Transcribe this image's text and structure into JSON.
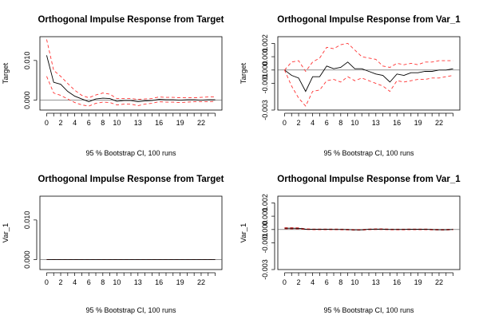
{
  "chart_data": [
    {
      "type": "line",
      "title": "Orthogonal Impulse Response from Target",
      "ylabel": "Target",
      "xlabel": "95 % Bootstrap CI,  100 runs",
      "ylim": [
        -0.0025,
        0.016
      ],
      "yticks": [
        0.0,
        0.01
      ],
      "ytick_labels": [
        "0.000",
        "0.010"
      ],
      "xticks": [
        0,
        2,
        4,
        6,
        8,
        10,
        13,
        16,
        19,
        22
      ],
      "zero_line": true,
      "x": [
        0,
        1,
        2,
        3,
        4,
        5,
        6,
        7,
        8,
        9,
        10,
        11,
        12,
        13,
        14,
        15,
        16,
        17,
        18,
        19,
        20,
        21,
        22,
        23,
        24
      ],
      "series": [
        {
          "role": "irf",
          "color": "#000000",
          "dash": false,
          "values": [
            0.0113,
            0.0045,
            0.004,
            0.0022,
            0.001,
            0.0003,
            -0.0004,
            0.0003,
            0.0005,
            0.0004,
            -0.0003,
            -0.0001,
            -0.0001,
            -0.0004,
            -0.0002,
            -0.0001,
            0.0002,
            0.0001,
            0.0001,
            0.0,
            0.0001,
            0.0001,
            0.0,
            0.0001,
            0.0001
          ]
        },
        {
          "role": "upper",
          "color": "#ff3333",
          "dash": true,
          "values": [
            0.0153,
            0.0075,
            0.006,
            0.0042,
            0.0025,
            0.0012,
            0.0006,
            0.0013,
            0.0018,
            0.0015,
            0.0004,
            0.0004,
            0.0004,
            0.0002,
            0.0003,
            0.0004,
            0.0008,
            0.0007,
            0.0007,
            0.0006,
            0.0006,
            0.0006,
            0.0007,
            0.0008,
            0.0008
          ]
        },
        {
          "role": "lower",
          "color": "#ff3333",
          "dash": true,
          "values": [
            0.006,
            0.0018,
            0.0012,
            0.0003,
            -0.0006,
            -0.0012,
            -0.0015,
            -0.0008,
            -0.0005,
            -0.0006,
            -0.0012,
            -0.001,
            -0.001,
            -0.0014,
            -0.001,
            -0.0008,
            -0.0004,
            -0.0005,
            -0.0005,
            -0.0006,
            -0.0005,
            -0.0004,
            -0.0004,
            -0.0004,
            -0.0003
          ]
        }
      ]
    },
    {
      "type": "line",
      "title": "Orthogonal Impulse Response from Var_1",
      "ylabel": "Target",
      "xlabel": "95 % Bootstrap CI,  100 runs",
      "ylim": [
        -0.003,
        0.0025
      ],
      "yticks": [
        -0.003,
        -0.001,
        0.0,
        0.001,
        0.002
      ],
      "ytick_labels": [
        "-0.003",
        "-0.001",
        "0.000",
        "0.001",
        "0.002"
      ],
      "xticks": [
        0,
        2,
        4,
        6,
        8,
        10,
        13,
        16,
        19,
        22
      ],
      "zero_line": true,
      "x": [
        0,
        1,
        2,
        3,
        4,
        5,
        6,
        7,
        8,
        9,
        10,
        11,
        12,
        13,
        14,
        15,
        16,
        17,
        18,
        19,
        20,
        21,
        22,
        23,
        24
      ],
      "series": [
        {
          "role": "irf",
          "color": "#000000",
          "dash": false,
          "values": [
            0.0,
            -0.0004,
            -0.0006,
            -0.0016,
            -0.0005,
            -0.0005,
            0.0003,
            0.0001,
            0.0002,
            0.0006,
            0.0001,
            0.0001,
            -0.0001,
            -0.0003,
            -0.0004,
            -0.0009,
            -0.0003,
            -0.0004,
            -0.0002,
            -0.0002,
            -0.0001,
            -0.0001,
            0.0,
            0.0,
            0.0001
          ]
        },
        {
          "role": "upper",
          "color": "#ff3333",
          "dash": true,
          "values": [
            0.0,
            0.0006,
            0.0007,
            -0.0001,
            0.0006,
            0.0009,
            0.0017,
            0.0016,
            0.0019,
            0.002,
            0.0015,
            0.001,
            0.0009,
            0.0008,
            0.0003,
            0.0002,
            0.0005,
            0.0004,
            0.0005,
            0.0004,
            0.0006,
            0.0006,
            0.0007,
            0.0007,
            0.0007
          ]
        },
        {
          "role": "lower",
          "color": "#ff3333",
          "dash": true,
          "values": [
            0.0,
            -0.0012,
            -0.0021,
            -0.0027,
            -0.0016,
            -0.0015,
            -0.0008,
            -0.0007,
            -0.0009,
            -0.0005,
            -0.0008,
            -0.0006,
            -0.0008,
            -0.001,
            -0.0012,
            -0.0016,
            -0.0008,
            -0.0009,
            -0.0008,
            -0.0007,
            -0.0007,
            -0.0006,
            -0.0006,
            -0.0005,
            -0.0004
          ]
        }
      ]
    },
    {
      "type": "line",
      "title": "Orthogonal Impulse Response from Target",
      "ylabel": "Var_1",
      "xlabel": "95 % Bootstrap CI,  100 runs",
      "ylim": [
        -0.0025,
        0.016
      ],
      "yticks": [
        0.0,
        0.01
      ],
      "ytick_labels": [
        "0.000",
        "0.010"
      ],
      "xticks": [
        0,
        2,
        4,
        6,
        8,
        10,
        13,
        16,
        19,
        22
      ],
      "zero_line": true,
      "x": [
        0,
        1,
        2,
        3,
        4,
        5,
        6,
        7,
        8,
        9,
        10,
        11,
        12,
        13,
        14,
        15,
        16,
        17,
        18,
        19,
        20,
        21,
        22,
        23,
        24
      ],
      "series": [
        {
          "role": "upper",
          "color": "#ff3333",
          "dash": true,
          "values": [
            0,
            0,
            0,
            0,
            0,
            0,
            0,
            0,
            0,
            0,
            0,
            0,
            0,
            0,
            0,
            0,
            0,
            0,
            0,
            0,
            0,
            0,
            0,
            0,
            0
          ]
        },
        {
          "role": "lower",
          "color": "#ff3333",
          "dash": true,
          "values": [
            0,
            0,
            0,
            0,
            0,
            0,
            0,
            0,
            0,
            0,
            0,
            0,
            0,
            0,
            0,
            0,
            0,
            0,
            0,
            0,
            0,
            0,
            0,
            0,
            0
          ]
        },
        {
          "role": "irf",
          "color": "#000000",
          "dash": false,
          "values": [
            0,
            0,
            0,
            0,
            0,
            0,
            0,
            0,
            0,
            0,
            0,
            0,
            0,
            0,
            0,
            0,
            0,
            0,
            0,
            0,
            0,
            0,
            0,
            0,
            0
          ]
        }
      ]
    },
    {
      "type": "line",
      "title": "Orthogonal Impulse Response from Var_1",
      "ylabel": "Var_1",
      "xlabel": "95 % Bootstrap CI,  100 runs",
      "ylim": [
        -0.003,
        0.0025
      ],
      "yticks": [
        -0.003,
        -0.001,
        0.0,
        0.001,
        0.002
      ],
      "ytick_labels": [
        "-0.003",
        "-0.001",
        "0.000",
        "0.001",
        "0.002"
      ],
      "xticks": [
        0,
        2,
        4,
        6,
        8,
        10,
        13,
        16,
        19,
        22
      ],
      "zero_line": true,
      "x": [
        0,
        1,
        2,
        3,
        4,
        5,
        6,
        7,
        8,
        9,
        10,
        11,
        12,
        13,
        14,
        15,
        16,
        17,
        18,
        19,
        20,
        21,
        22,
        23,
        24
      ],
      "series": [
        {
          "role": "upper",
          "color": "#ff3333",
          "dash": true,
          "values": [
            0.00014,
            0.00014,
            0.00013,
            5e-05,
            4e-05,
            4e-05,
            4e-05,
            4e-05,
            3e-05,
            2e-05,
            0.0,
            0.0,
            4e-05,
            5e-05,
            5e-05,
            3e-05,
            3e-05,
            3e-05,
            4e-05,
            4e-05,
            4e-05,
            2e-05,
            1e-05,
            1e-05,
            3e-05
          ]
        },
        {
          "role": "lower",
          "color": "#ff3333",
          "dash": true,
          "values": [
            6e-05,
            5e-05,
            5e-05,
            0.0,
            -1e-05,
            -1e-05,
            -1e-05,
            -1e-05,
            -2e-05,
            -3e-05,
            -5e-05,
            -5e-05,
            -1e-05,
            0.0,
            0.0,
            -2e-05,
            -2e-05,
            -2e-05,
            -1e-05,
            -1e-05,
            -1e-05,
            -3e-05,
            -4e-05,
            -4e-05,
            -2e-05
          ]
        },
        {
          "role": "irf",
          "color": "#000000",
          "dash": false,
          "values": [
            0.0001,
            0.0001,
            9e-05,
            3e-05,
            2e-05,
            2e-05,
            2e-05,
            1e-05,
            1e-05,
            0.0,
            -2e-05,
            -2e-05,
            2e-05,
            3e-05,
            3e-05,
            1e-05,
            1e-05,
            1e-05,
            2e-05,
            2e-05,
            2e-05,
            0.0,
            -1e-05,
            -1e-05,
            1e-05
          ]
        }
      ]
    }
  ]
}
